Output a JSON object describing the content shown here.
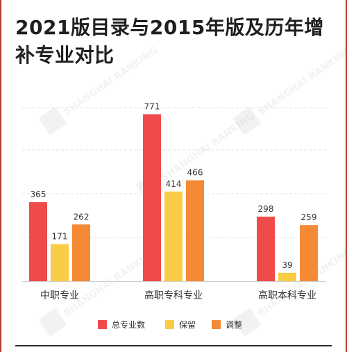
{
  "title": "2021版目录与2015年版及历年增补专业对比",
  "colors": {
    "total": "#ef4b4b",
    "keep": "#f8cd45",
    "adjust": "#f58a36",
    "frame": "#b03a2e"
  },
  "watermark_icon": "watermark-logo",
  "watermark_text": "SHANGHAI RANKING",
  "chart_data": {
    "type": "bar",
    "categories": [
      "中职专业",
      "高职专科专业",
      "高职本科专业"
    ],
    "series": [
      {
        "name": "总专业数",
        "values": [
          365,
          771,
          298
        ]
      },
      {
        "name": "保留",
        "values": [
          171,
          414,
          39
        ]
      },
      {
        "name": "调整",
        "values": [
          262,
          466,
          259
        ]
      }
    ],
    "ylim": [
      0,
      900
    ],
    "grid": true,
    "legend_position": "bottom-right",
    "data_labels": true
  }
}
